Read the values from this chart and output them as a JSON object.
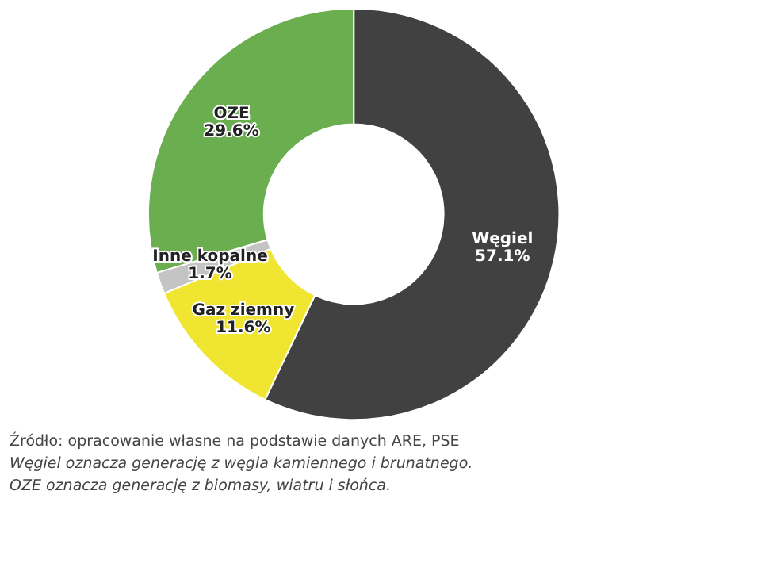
{
  "chart_data": {
    "type": "donut",
    "categories": [
      "Węgiel",
      "Gaz ziemny",
      "Inne kopalne",
      "OZE"
    ],
    "values": [
      57.1,
      11.6,
      1.7,
      29.6
    ],
    "value_labels": [
      "57.1%",
      "11.6%",
      "1.7%",
      "29.6%"
    ],
    "colors": [
      "#414141",
      "#f0e632",
      "#c4c4c4",
      "#6aae50"
    ],
    "legend": false,
    "annotations": [
      "Źródło: opracowanie własne na podstawie danych ARE, PSE",
      "Węgiel oznacza generację z węgla kamiennego i brunatnego.",
      "OZE oznacza generację z biomasy, wiatru i słońca."
    ]
  }
}
